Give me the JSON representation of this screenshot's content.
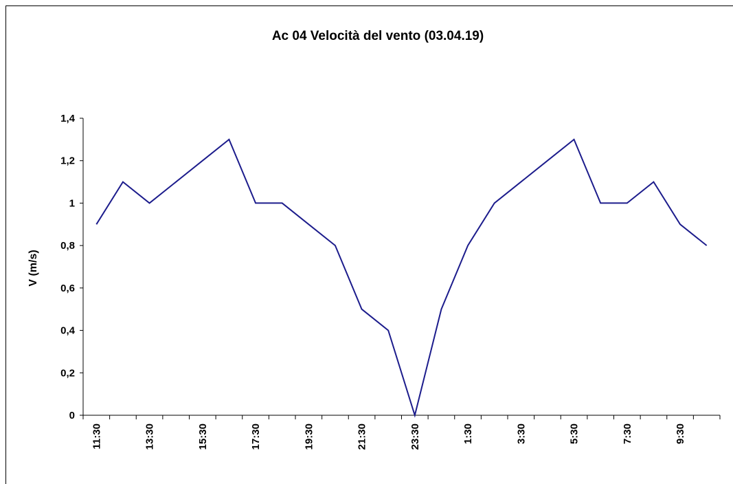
{
  "chart_data": {
    "type": "line",
    "title": "Ac 04 Velocità del vento (03.04.19)",
    "y_label": "V (m/s)",
    "categories": [
      "11:30",
      null,
      "13:30",
      null,
      "15:30",
      null,
      "17:30",
      null,
      "19:30",
      null,
      "21:30",
      null,
      "23:30",
      null,
      "1:30",
      null,
      "3:30",
      null,
      "5:30",
      null,
      "7:30",
      null,
      "9:30",
      null
    ],
    "series": [
      {
        "name": "V",
        "color": "#1c1c8c",
        "values": [
          0.9,
          1.1,
          1.0,
          1.1,
          1.2,
          1.3,
          1.0,
          1.0,
          0.9,
          0.8,
          0.5,
          0.4,
          0,
          0.5,
          0.8,
          1.0,
          1.1,
          1.2,
          1.3,
          1.0,
          1.0,
          1.1,
          0.9,
          0.8
        ]
      }
    ],
    "ylim": [
      0,
      1.4
    ],
    "yticks": [
      0,
      {
        "value": 0.2,
        "label": "0,2"
      },
      {
        "value": 0.4,
        "label": "0,4"
      },
      {
        "value": 0.6,
        "label": "0,6"
      },
      {
        "value": 0.8,
        "label": "0,8"
      },
      1,
      {
        "value": 1.2,
        "label": "1,2"
      },
      {
        "value": 1.4,
        "label": "1,4"
      }
    ],
    "grid": false
  }
}
